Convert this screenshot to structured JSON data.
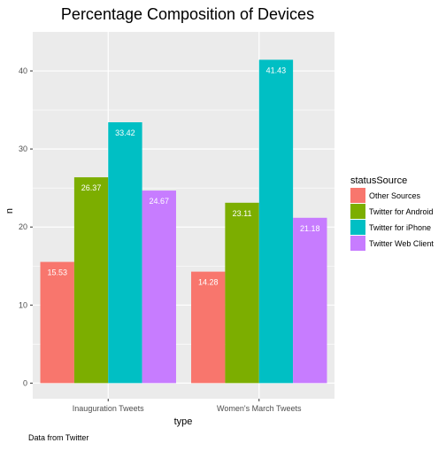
{
  "chart_data": {
    "type": "bar",
    "title": "Percentage Composition of Devices",
    "xlabel": "type",
    "ylabel": "n",
    "caption": "Data from Twitter",
    "categories": [
      "Inauguration Tweets",
      "Women's March Tweets"
    ],
    "ylim": [
      -2,
      45
    ],
    "yticks": [
      0,
      10,
      20,
      30,
      40
    ],
    "grid": true,
    "legend": {
      "title": "statusSource",
      "placement": "right"
    },
    "series": [
      {
        "name": "Other Sources",
        "color": "#F8766D",
        "values": [
          15.53,
          14.28
        ],
        "labels": [
          "15.53",
          "14.28"
        ]
      },
      {
        "name": "Twitter for Android",
        "color": "#7CAE00",
        "values": [
          26.37,
          23.11
        ],
        "labels": [
          "26.37",
          "23.11"
        ]
      },
      {
        "name": "Twitter for iPhone",
        "color": "#00BFC4",
        "values": [
          33.42,
          41.43
        ],
        "labels": [
          "33.42",
          "41.43"
        ]
      },
      {
        "name": "Twitter Web Client",
        "color": "#C77CFF",
        "values": [
          24.67,
          21.18
        ],
        "labels": [
          "24.67",
          "21.18"
        ]
      }
    ],
    "panel_background": "#EBEBEB",
    "grid_color": "#FFFFFF",
    "text_color": "#000000",
    "axis_text_color": "#4D4D4D"
  }
}
